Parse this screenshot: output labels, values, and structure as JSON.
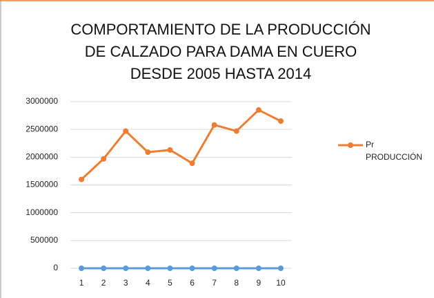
{
  "chart_data": {
    "type": "line",
    "title": [
      "COMPORTAMIENTO DE LA PRODUCCIÓN",
      "DE CALZADO PARA DAMA EN CUERO",
      "DESDE 2005 HASTA 2014"
    ],
    "categories": [
      "1",
      "2",
      "3",
      "4",
      "5",
      "6",
      "7",
      "8",
      "9",
      "10"
    ],
    "series": [
      {
        "color": "#5b9bd5",
        "values": [
          0,
          0,
          0,
          0,
          0,
          0,
          0,
          0,
          0,
          0
        ]
      },
      {
        "name": "Pr PRODUCCIÓN",
        "color": "#ed7d31",
        "values": [
          1600000,
          1970000,
          2470000,
          2090000,
          2130000,
          1890000,
          2580000,
          2470000,
          2850000,
          2650000
        ]
      }
    ],
    "ylim": [
      0,
      3000000
    ],
    "yticks": [
      0,
      500000,
      1000000,
      1500000,
      2000000,
      2500000,
      3000000
    ],
    "grid": true,
    "legend": "right"
  }
}
